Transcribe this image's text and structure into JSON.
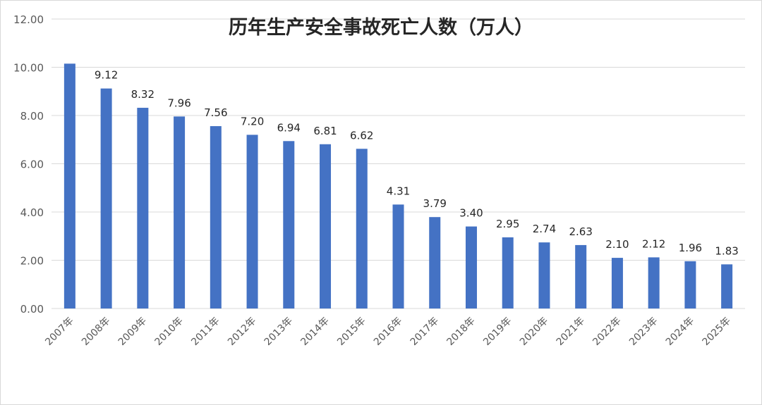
{
  "chart_data": {
    "type": "bar",
    "title": "历年生产安全事故死亡人数（万人）",
    "categories": [
      "2007年",
      "2008年",
      "2009年",
      "2010年",
      "2011年",
      "2012年",
      "2013年",
      "2014年",
      "2015年",
      "2016年",
      "2017年",
      "2018年",
      "2019年",
      "2020年",
      "2021年",
      "2022年",
      "2023年",
      "2024年",
      "2025年"
    ],
    "values": [
      10.15,
      9.12,
      8.32,
      7.96,
      7.56,
      7.2,
      6.94,
      6.81,
      6.62,
      4.31,
      3.79,
      3.4,
      2.95,
      2.74,
      2.63,
      2.1,
      2.12,
      1.96,
      1.83
    ],
    "data_labels": [
      "",
      "9.12",
      "8.32",
      "7.96",
      "7.56",
      "7.20",
      "6.94",
      "6.81",
      "6.62",
      "4.31",
      "3.79",
      "3.40",
      "2.95",
      "2.74",
      "2.63",
      "2.10",
      "2.12",
      "1.96",
      "1.83"
    ],
    "yticks": [
      "0.00",
      "2.00",
      "4.00",
      "6.00",
      "8.00",
      "10.00",
      "12.00"
    ],
    "ylim": [
      0,
      12
    ],
    "xlabel": "",
    "ylabel": "",
    "grid": true,
    "colors": {
      "bar": "#4472c4",
      "grid": "#d9d9d9",
      "text": "#595959",
      "label": "#262626",
      "title": "#262626"
    }
  }
}
